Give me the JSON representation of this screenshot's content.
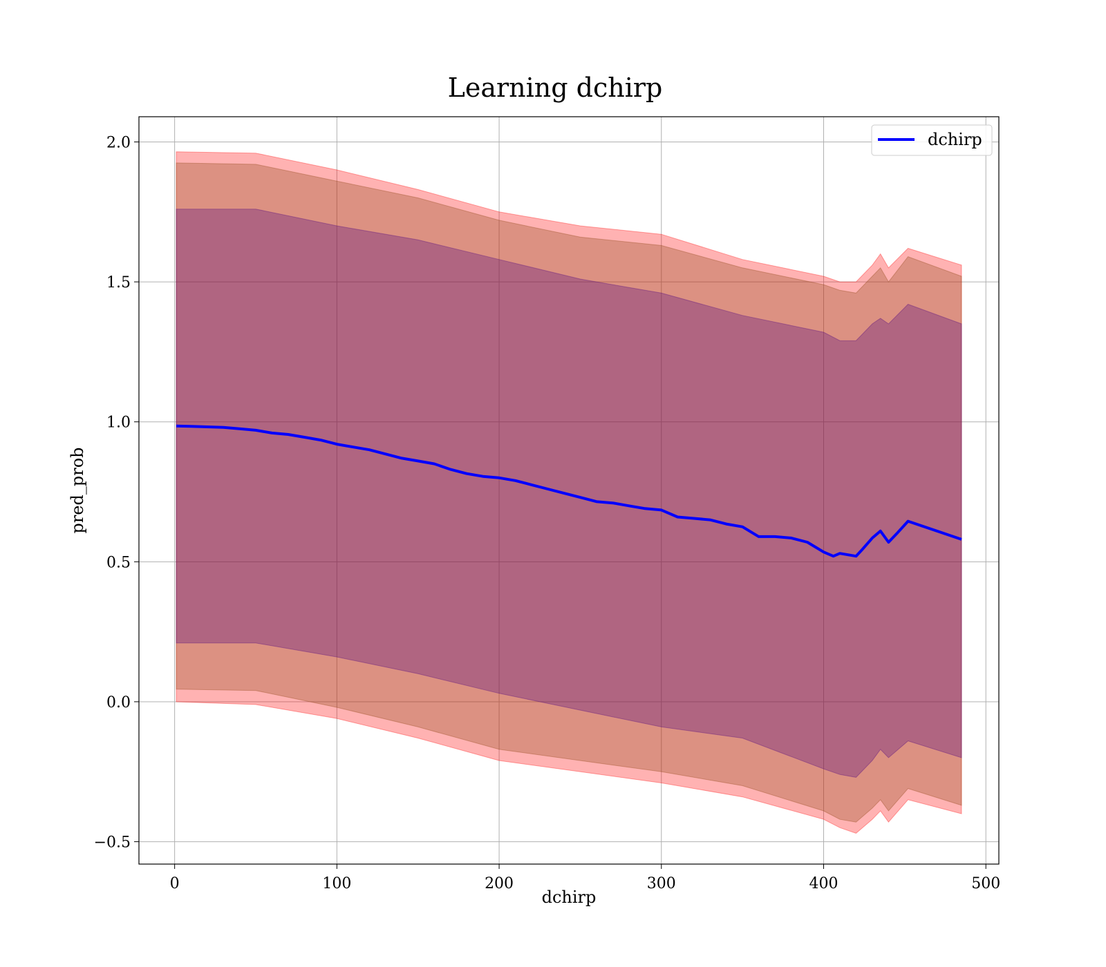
{
  "chart_data": {
    "type": "line",
    "title": "Learning dchirp",
    "xlabel": "dchirp",
    "ylabel": "pred_prob",
    "xlim": [
      -22,
      508
    ],
    "ylim": [
      -0.58,
      2.09
    ],
    "xticks": [
      0,
      100,
      200,
      300,
      400,
      500
    ],
    "yticks": [
      -0.5,
      0.0,
      0.5,
      1.0,
      1.5,
      2.0
    ],
    "xtick_labels": [
      "0",
      "100",
      "200",
      "300",
      "400",
      "500"
    ],
    "ytick_labels": [
      "−0.5",
      "0.0",
      "0.5",
      "1.0",
      "1.5",
      "2.0"
    ],
    "grid": true,
    "legend_position": "top-right",
    "series": [
      {
        "name": "dchirp",
        "color": "#0000ff",
        "x": [
          1,
          10,
          20,
          30,
          40,
          50,
          60,
          70,
          80,
          90,
          100,
          110,
          120,
          130,
          140,
          150,
          160,
          170,
          180,
          190,
          200,
          210,
          220,
          230,
          240,
          250,
          260,
          270,
          280,
          290,
          300,
          310,
          320,
          330,
          340,
          350,
          360,
          370,
          380,
          390,
          400,
          406,
          410,
          420,
          424,
          430,
          435,
          440,
          445,
          452,
          485
        ],
        "y": [
          0.985,
          0.984,
          0.982,
          0.98,
          0.975,
          0.97,
          0.96,
          0.955,
          0.945,
          0.935,
          0.92,
          0.91,
          0.9,
          0.885,
          0.87,
          0.86,
          0.85,
          0.83,
          0.815,
          0.805,
          0.8,
          0.79,
          0.775,
          0.76,
          0.745,
          0.73,
          0.715,
          0.71,
          0.7,
          0.69,
          0.685,
          0.66,
          0.655,
          0.65,
          0.635,
          0.625,
          0.59,
          0.59,
          0.585,
          0.57,
          0.535,
          0.52,
          0.53,
          0.52,
          0.545,
          0.585,
          0.61,
          0.57,
          0.6,
          0.645,
          0.58
        ]
      }
    ],
    "bands": [
      {
        "role": "outer",
        "color": "#ff0000",
        "x": [
          1,
          50,
          100,
          150,
          200,
          250,
          300,
          350,
          400,
          410,
          420,
          430,
          435,
          440,
          452,
          485
        ],
        "upper": [
          1.965,
          1.96,
          1.9,
          1.83,
          1.75,
          1.7,
          1.67,
          1.58,
          1.52,
          1.5,
          1.5,
          1.56,
          1.6,
          1.55,
          1.62,
          1.56
        ],
        "lower": [
          0.0,
          -0.01,
          -0.06,
          -0.13,
          -0.21,
          -0.25,
          -0.29,
          -0.34,
          -0.42,
          -0.45,
          -0.47,
          -0.42,
          -0.39,
          -0.43,
          -0.35,
          -0.4
        ]
      },
      {
        "role": "middle",
        "color": "#8b4513",
        "x": [
          1,
          50,
          100,
          150,
          200,
          250,
          300,
          350,
          400,
          410,
          420,
          430,
          435,
          440,
          452,
          485
        ],
        "upper": [
          1.925,
          1.92,
          1.86,
          1.8,
          1.72,
          1.66,
          1.63,
          1.55,
          1.49,
          1.47,
          1.46,
          1.52,
          1.55,
          1.5,
          1.59,
          1.52
        ],
        "lower": [
          0.045,
          0.04,
          -0.02,
          -0.09,
          -0.17,
          -0.21,
          -0.25,
          -0.3,
          -0.39,
          -0.42,
          -0.43,
          -0.38,
          -0.35,
          -0.39,
          -0.31,
          -0.37
        ]
      },
      {
        "role": "inner",
        "color": "#4b0082",
        "x": [
          1,
          50,
          100,
          150,
          200,
          250,
          300,
          350,
          400,
          410,
          420,
          430,
          435,
          440,
          452,
          485
        ],
        "upper": [
          1.76,
          1.76,
          1.7,
          1.65,
          1.58,
          1.51,
          1.46,
          1.38,
          1.32,
          1.29,
          1.29,
          1.35,
          1.37,
          1.35,
          1.42,
          1.35
        ],
        "lower": [
          0.21,
          0.21,
          0.16,
          0.1,
          0.03,
          -0.03,
          -0.09,
          -0.13,
          -0.24,
          -0.26,
          -0.27,
          -0.21,
          -0.17,
          -0.2,
          -0.14,
          -0.2
        ]
      }
    ]
  }
}
